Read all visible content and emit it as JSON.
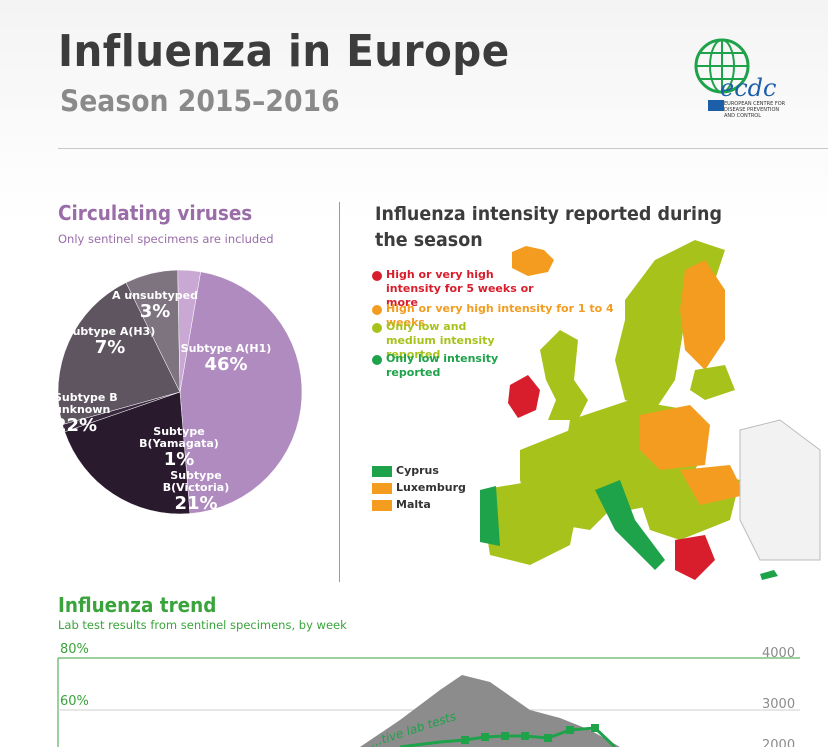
{
  "header": {
    "title": "Influenza in Europe",
    "subtitle": "Season 2015–2016",
    "logo_text": "ecdc",
    "logo_subtext": "EUROPEAN CENTRE FOR DISEASE PREVENTION AND CONTROL"
  },
  "viruses": {
    "title": "Circulating viruses",
    "subtitle": "Only sentinel specimens are included",
    "slices": [
      {
        "name": "Subtype A(H1)",
        "pct": "46%",
        "value": 46,
        "color": "#b08bbf"
      },
      {
        "name": "Subtype B(Victoria)",
        "pct": "21%",
        "value": 21,
        "color": "#2a1a2e"
      },
      {
        "name": "Subtype B(Yamagata)",
        "pct": "1%",
        "value": 1,
        "color": "#3a2a3f"
      },
      {
        "name": "Subtype B unknown",
        "pct": "22%",
        "value": 22,
        "color": "#5e5560"
      },
      {
        "name": "Subtype A(H3)",
        "pct": "7%",
        "value": 7,
        "color": "#7d7480"
      },
      {
        "name": "A unsubtyped",
        "pct": "3%",
        "value": 3,
        "color": "#c9a9d3"
      }
    ]
  },
  "intensity": {
    "title": "Influenza intensity reported during the season",
    "legend": [
      {
        "label": "High or very high intensity for 5 weeks or more",
        "color": "#d81e2c"
      },
      {
        "label": "High or very high intensity for 1 to 4 weeks",
        "color": "#f39c1f"
      },
      {
        "label": "Only low and medium intensity reported",
        "color": "#a8c21c"
      },
      {
        "label": "Only low intensity reported",
        "color": "#1ea24a"
      }
    ],
    "small_countries": [
      {
        "label": "Cyprus",
        "color": "#1ea24a"
      },
      {
        "label": "Luxemburg",
        "color": "#f39c1f"
      },
      {
        "label": "Malta",
        "color": "#f39c1f"
      }
    ]
  },
  "trend": {
    "title": "Influenza trend",
    "subtitle": "Lab test results from sentinel specimens, by week",
    "left_ticks": [
      "80%",
      "60%"
    ],
    "right_ticks": [
      "4000",
      "3000",
      "2000"
    ],
    "series_label": "…tive lab tests",
    "line_color": "#1ea24a",
    "area_color": "#8c8c8c"
  }
}
